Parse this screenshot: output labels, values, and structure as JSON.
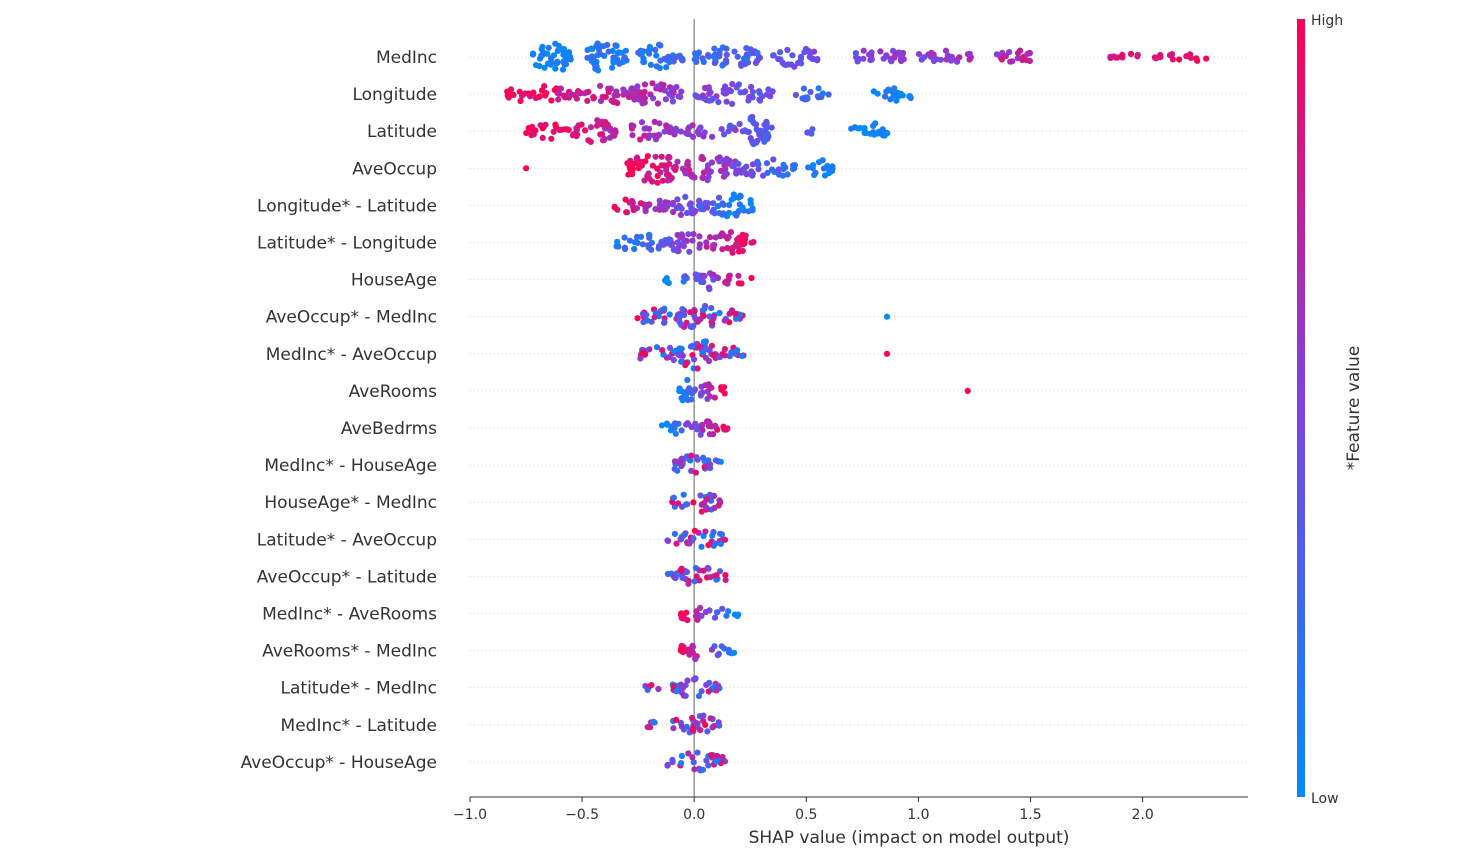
{
  "chart_data": {
    "type": "scatter",
    "subtype": "shap-beeswarm",
    "title": "",
    "xlabel": "SHAP value (impact on model output)",
    "xlim": [
      -1.0,
      2.47
    ],
    "xticks": [
      -1.0,
      -0.5,
      0.0,
      0.5,
      1.0,
      1.5,
      2.0
    ],
    "xtick_labels": [
      "−1.0",
      "−0.5",
      "0.0",
      "0.5",
      "1.0",
      "1.5",
      "2.0"
    ],
    "colorbar": {
      "label": "*Feature value",
      "high_label": "High",
      "low_label": "Low",
      "low_color": "#008bfb",
      "mid_color": "#7d44e4",
      "high_color": "#ff0052"
    },
    "features": [
      {
        "name": "MedInc",
        "min": -0.75,
        "max": 2.3,
        "spread": 0.5,
        "pattern": "increasing",
        "clusters": [
          [
            -0.72,
            -0.55,
            10
          ],
          [
            -0.5,
            -0.3,
            8
          ],
          [
            -0.25,
            -0.05,
            7
          ],
          [
            0.0,
            0.3,
            6
          ],
          [
            0.35,
            0.55,
            5
          ],
          [
            0.7,
            0.95,
            4
          ],
          [
            1.0,
            1.25,
            3
          ],
          [
            1.35,
            1.55,
            3
          ],
          [
            1.85,
            2.0,
            2
          ],
          [
            2.05,
            2.3,
            2
          ]
        ]
      },
      {
        "name": "Longitude",
        "min": -0.85,
        "max": 1.0,
        "spread": 0.35,
        "pattern": "decreasing",
        "clusters": [
          [
            -0.85,
            -0.55,
            4
          ],
          [
            -0.55,
            -0.2,
            5
          ],
          [
            -0.3,
            -0.05,
            6
          ],
          [
            0.0,
            0.35,
            5
          ],
          [
            0.45,
            0.6,
            3
          ],
          [
            0.8,
            1.0,
            3
          ]
        ]
      },
      {
        "name": "Latitude",
        "min": -0.75,
        "max": 0.9,
        "spread": 0.45,
        "pattern": "decreasing",
        "clusters": [
          [
            -0.75,
            -0.55,
            4
          ],
          [
            -0.55,
            -0.35,
            6
          ],
          [
            -0.3,
            -0.1,
            5
          ],
          [
            -0.1,
            0.15,
            3
          ],
          [
            0.15,
            0.35,
            8
          ],
          [
            0.5,
            0.55,
            1
          ],
          [
            0.7,
            0.88,
            4
          ]
        ]
      },
      {
        "name": "AveOccup",
        "min": -0.3,
        "max": 0.62,
        "spread": 0.5,
        "pattern": "decreasing",
        "clusters": [
          [
            -0.3,
            -0.05,
            8
          ],
          [
            -0.05,
            0.2,
            7
          ],
          [
            0.2,
            0.45,
            5
          ],
          [
            0.5,
            0.62,
            4
          ]
        ],
        "outliers": [
          [
            -0.75,
            1.0
          ]
        ]
      },
      {
        "name": "Longitude* - Latitude",
        "min": -0.38,
        "max": 0.27,
        "spread": 0.35,
        "pattern": "decreasing",
        "clusters": [
          [
            -0.38,
            -0.1,
            4
          ],
          [
            -0.15,
            0.05,
            5
          ],
          [
            0.05,
            0.27,
            6
          ]
        ]
      },
      {
        "name": "Latitude* - Longitude",
        "min": -0.38,
        "max": 0.27,
        "spread": 0.35,
        "pattern": "increasing",
        "clusters": [
          [
            -0.38,
            -0.1,
            4
          ],
          [
            -0.15,
            0.05,
            5
          ],
          [
            0.05,
            0.27,
            6
          ]
        ]
      },
      {
        "name": "HouseAge",
        "min": -0.13,
        "max": 0.27,
        "spread": 0.3,
        "pattern": "increasing",
        "clusters": [
          [
            -0.13,
            0.05,
            3
          ],
          [
            0.03,
            0.1,
            5
          ],
          [
            0.1,
            0.27,
            2
          ]
        ]
      },
      {
        "name": "AveOccup* - MedInc",
        "min": -0.26,
        "max": 0.22,
        "spread": 0.45,
        "pattern": "mixed",
        "clusters": [
          [
            -0.26,
            -0.05,
            4
          ],
          [
            -0.08,
            0.1,
            8
          ],
          [
            0.1,
            0.22,
            3
          ]
        ],
        "outliers": [
          [
            0.86,
            0.0
          ]
        ]
      },
      {
        "name": "MedInc* - AveOccup",
        "min": -0.26,
        "max": 0.22,
        "spread": 0.45,
        "pattern": "mixed",
        "clusters": [
          [
            -0.26,
            -0.05,
            4
          ],
          [
            -0.08,
            0.1,
            8
          ],
          [
            0.1,
            0.22,
            3
          ]
        ],
        "outliers": [
          [
            0.86,
            1.0
          ]
        ]
      },
      {
        "name": "AveRooms",
        "min": -0.07,
        "max": 0.14,
        "spread": 0.35,
        "pattern": "increasing",
        "clusters": [
          [
            -0.07,
            0.0,
            7
          ],
          [
            0.0,
            0.14,
            4
          ]
        ],
        "outliers": [
          [
            1.22,
            1.0
          ]
        ]
      },
      {
        "name": "AveBedrms",
        "min": -0.15,
        "max": 0.16,
        "spread": 0.3,
        "pattern": "increasing",
        "clusters": [
          [
            -0.15,
            0.0,
            3
          ],
          [
            0.0,
            0.1,
            6
          ],
          [
            0.1,
            0.16,
            2
          ]
        ]
      },
      {
        "name": "MedInc* - HouseAge",
        "min": -0.1,
        "max": 0.12,
        "spread": 0.3,
        "pattern": "mixed",
        "clusters": [
          [
            -0.1,
            0.12,
            5
          ]
        ]
      },
      {
        "name": "HouseAge* - MedInc",
        "min": -0.1,
        "max": 0.12,
        "spread": 0.3,
        "pattern": "mixed",
        "clusters": [
          [
            -0.1,
            0.12,
            5
          ]
        ]
      },
      {
        "name": "Latitude* - AveOccup",
        "min": -0.12,
        "max": 0.14,
        "spread": 0.3,
        "pattern": "mixed",
        "clusters": [
          [
            -0.12,
            0.14,
            5
          ]
        ]
      },
      {
        "name": "AveOccup* - Latitude",
        "min": -0.12,
        "max": 0.14,
        "spread": 0.3,
        "pattern": "mixed",
        "clusters": [
          [
            -0.12,
            0.14,
            5
          ]
        ]
      },
      {
        "name": "MedInc* - AveRooms",
        "min": -0.06,
        "max": 0.2,
        "spread": 0.3,
        "pattern": "decreasing",
        "clusters": [
          [
            -0.06,
            0.04,
            5
          ],
          [
            0.04,
            0.2,
            2
          ]
        ]
      },
      {
        "name": "AveRooms* - MedInc",
        "min": -0.06,
        "max": 0.2,
        "spread": 0.3,
        "pattern": "decreasing",
        "clusters": [
          [
            -0.06,
            0.04,
            5
          ],
          [
            0.04,
            0.2,
            2
          ]
        ]
      },
      {
        "name": "Latitude* - MedInc",
        "min": -0.22,
        "max": 0.12,
        "spread": 0.3,
        "pattern": "mixed",
        "clusters": [
          [
            -0.22,
            -0.15,
            1
          ],
          [
            -0.1,
            0.12,
            5
          ]
        ]
      },
      {
        "name": "MedInc* - Latitude",
        "min": -0.22,
        "max": 0.12,
        "spread": 0.3,
        "pattern": "mixed",
        "clusters": [
          [
            -0.22,
            -0.15,
            1
          ],
          [
            -0.1,
            0.12,
            5
          ]
        ]
      },
      {
        "name": "AveOccup* - HouseAge",
        "min": -0.12,
        "max": 0.14,
        "spread": 0.3,
        "pattern": "mixed",
        "clusters": [
          [
            -0.12,
            0.14,
            5
          ]
        ]
      }
    ]
  }
}
